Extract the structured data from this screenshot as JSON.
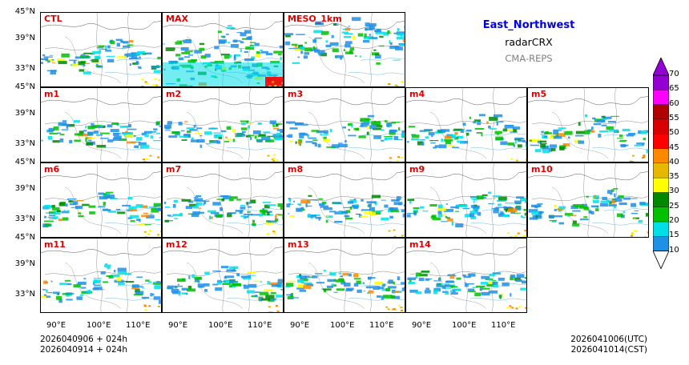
{
  "header": {
    "region": "East_Northwest",
    "variable": "radarCRX",
    "system": "CMA-REPS"
  },
  "panels": [
    {
      "label": "CTL"
    },
    {
      "label": "MAX"
    },
    {
      "label": "MESO_1km"
    },
    {
      "label": "m1"
    },
    {
      "label": "m2"
    },
    {
      "label": "m3"
    },
    {
      "label": "m4"
    },
    {
      "label": "m5"
    },
    {
      "label": "m6"
    },
    {
      "label": "m7"
    },
    {
      "label": "m8"
    },
    {
      "label": "m9"
    },
    {
      "label": "m10"
    },
    {
      "label": "m11"
    },
    {
      "label": "m12"
    },
    {
      "label": "m13"
    },
    {
      "label": "m14"
    }
  ],
  "lat_labels": [
    "45°N",
    "39°N",
    "33°N"
  ],
  "lon_labels": [
    "90°E",
    "100°E",
    "110°E"
  ],
  "colorbar": {
    "levels": [
      10,
      15,
      20,
      25,
      30,
      35,
      40,
      45,
      50,
      55,
      60,
      65,
      70
    ],
    "colors": [
      "#1e90e6",
      "#00dfe8",
      "#00c000",
      "#008800",
      "#ffff00",
      "#e8b800",
      "#ff8800",
      "#ff0000",
      "#d80000",
      "#b00000",
      "#ff00ff",
      "#9400d3"
    ]
  },
  "footer": {
    "init_utc": "2026040906  +  024h",
    "init_cst": "2026040914  +  024h",
    "valid_utc": "2026041006(UTC)",
    "valid_cst": "2026041014(CST)"
  }
}
